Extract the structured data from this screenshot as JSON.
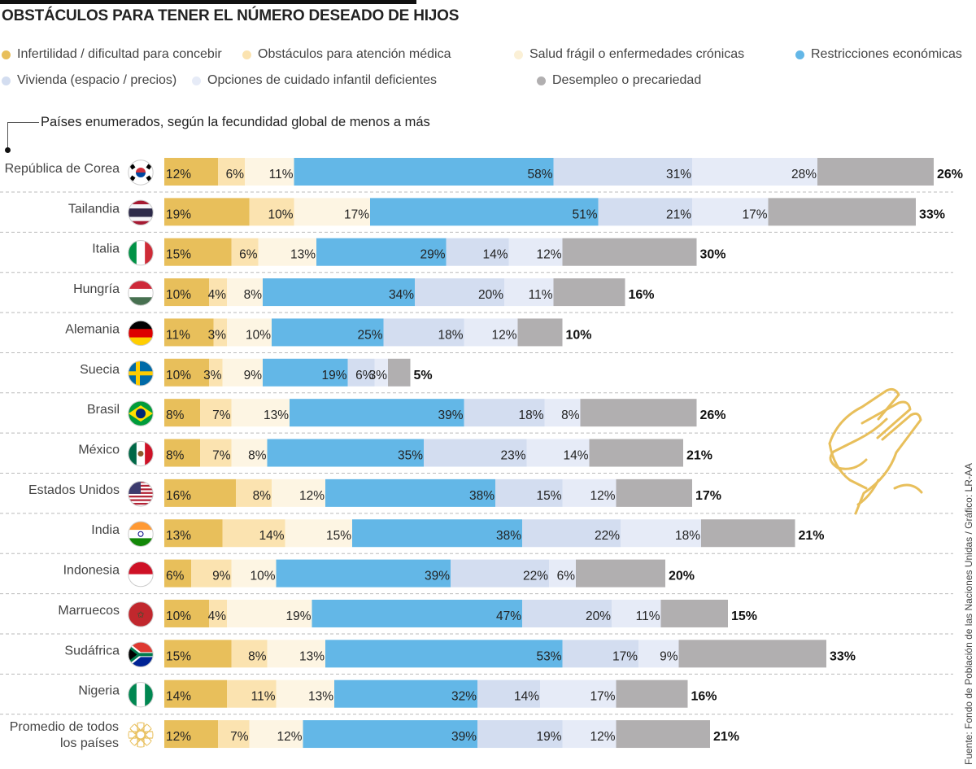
{
  "chart_data": {
    "type": "bar",
    "orientation": "horizontal-stacked",
    "title": "OBSTÁCULOS PARA TENER EL NÚMERO DESEADO DE HIJOS",
    "note": "Países enumerados, según la fecundidad global de menos a más",
    "source": "Fuente: Fondo de Población de las Naciones Unidas / Gráfico: LR-AA",
    "legend_placement": "top",
    "series": [
      {
        "name": "Infertilidad / dificultad para concebir",
        "color": "#e8bf5b"
      },
      {
        "name": "Obstáculos para atención médica",
        "color": "#fbe3b0"
      },
      {
        "name": "Salud frágil o enfermedades crónicas",
        "color": "#fdf5e3"
      },
      {
        "name": "Restricciones económicas",
        "color": "#63b7e7"
      },
      {
        "name": "Vivienda (espacio / precios)",
        "color": "#d3ddf0"
      },
      {
        "name": "Opciones de cuidado infantil deficientes",
        "color": "#e6ebf7"
      },
      {
        "name": "Desempleo o precariedad",
        "color": "#b1afb0"
      }
    ],
    "categories": [
      {
        "name": "República de Corea",
        "values": [
          12,
          6,
          11,
          58,
          31,
          28,
          26
        ],
        "flag": {
          "type": "korea",
          "colors": [
            "#ffffff",
            "#cd2e3a",
            "#0047a0",
            "#000000"
          ]
        }
      },
      {
        "name": "Tailandia",
        "values": [
          19,
          10,
          17,
          51,
          21,
          17,
          33
        ],
        "flag": {
          "type": "h",
          "colors": [
            "#a51931",
            "#f4f5f8",
            "#2d2a4a",
            "#2d2a4a",
            "#f4f5f8",
            "#a51931"
          ]
        }
      },
      {
        "name": "Italia",
        "values": [
          15,
          6,
          13,
          29,
          14,
          12,
          30
        ],
        "flag": {
          "type": "v",
          "colors": [
            "#009246",
            "#ffffff",
            "#ce2b37"
          ]
        }
      },
      {
        "name": "Hungría",
        "values": [
          10,
          4,
          8,
          34,
          20,
          11,
          16
        ],
        "flag": {
          "type": "h",
          "colors": [
            "#ce2939",
            "#ffffff",
            "#477050"
          ]
        }
      },
      {
        "name": "Alemania",
        "values": [
          11,
          3,
          10,
          25,
          18,
          12,
          10
        ],
        "flag": {
          "type": "h",
          "colors": [
            "#000000",
            "#dd0000",
            "#ffce00"
          ]
        }
      },
      {
        "name": "Suecia",
        "values": [
          10,
          3,
          9,
          19,
          6,
          3,
          5
        ],
        "flag": {
          "type": "nordic",
          "colors": [
            "#006aa7",
            "#fecc00"
          ]
        }
      },
      {
        "name": "Brasil",
        "values": [
          8,
          7,
          13,
          39,
          18,
          8,
          26
        ],
        "flag": {
          "type": "brazil",
          "colors": [
            "#009c3b",
            "#ffdf00",
            "#002776"
          ]
        }
      },
      {
        "name": "México",
        "values": [
          8,
          7,
          8,
          35,
          23,
          14,
          21
        ],
        "flag": {
          "type": "v",
          "colors": [
            "#006847",
            "#ffffff",
            "#ce1126"
          ]
        }
      },
      {
        "name": "Estados Unidos",
        "values": [
          16,
          8,
          12,
          38,
          15,
          12,
          17
        ],
        "flag": {
          "type": "usa",
          "colors": [
            "#b22234",
            "#ffffff",
            "#3c3b6e"
          ]
        }
      },
      {
        "name": "India",
        "values": [
          13,
          14,
          15,
          38,
          22,
          18,
          21
        ],
        "flag": {
          "type": "h",
          "colors": [
            "#ff9933",
            "#ffffff",
            "#138808"
          ]
        }
      },
      {
        "name": "Indonesia",
        "values": [
          6,
          9,
          10,
          39,
          22,
          6,
          20
        ],
        "flag": {
          "type": "h",
          "colors": [
            "#ce1126",
            "#ffffff"
          ]
        }
      },
      {
        "name": "Marruecos",
        "values": [
          10,
          4,
          19,
          47,
          20,
          11,
          15
        ],
        "flag": {
          "type": "solid",
          "colors": [
            "#c1272d",
            "#006233"
          ]
        }
      },
      {
        "name": "Sudáfrica",
        "values": [
          15,
          8,
          13,
          53,
          17,
          9,
          33
        ],
        "flag": {
          "type": "sa",
          "colors": [
            "#007a4d",
            "#de3831",
            "#002395",
            "#ffb612",
            "#000000",
            "#ffffff"
          ]
        }
      },
      {
        "name": "Nigeria",
        "values": [
          14,
          11,
          13,
          32,
          14,
          17,
          16
        ],
        "flag": {
          "type": "v",
          "colors": [
            "#008751",
            "#ffffff",
            "#008751"
          ]
        }
      },
      {
        "name": "Promedio de todos los países",
        "values": [
          12,
          7,
          12,
          39,
          19,
          12,
          21
        ],
        "flag": {
          "type": "un",
          "colors": [
            "#e8bf5b"
          ]
        }
      }
    ],
    "value_suffix": "%"
  }
}
